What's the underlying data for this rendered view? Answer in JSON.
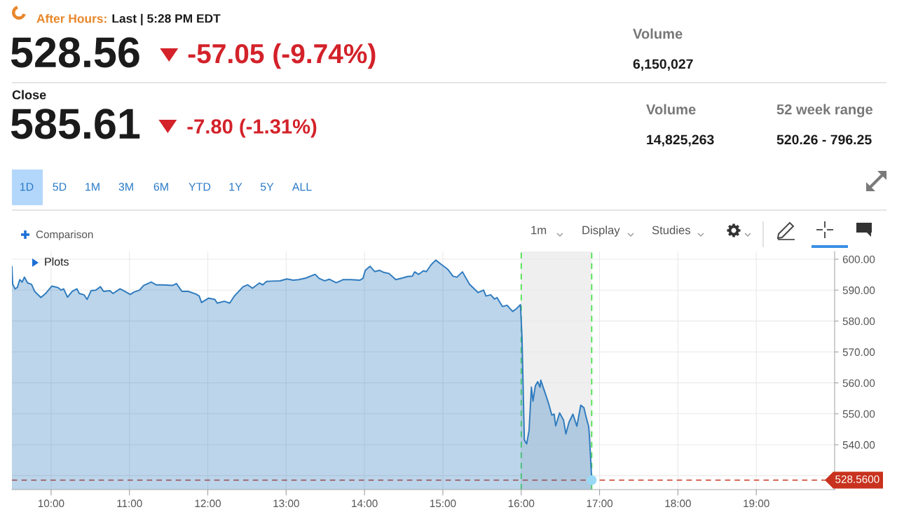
{
  "chart_data": {
    "type": "area",
    "x": [
      9.5,
      9.51,
      9.54,
      9.57,
      9.6,
      9.63,
      9.66,
      9.7,
      9.75,
      9.79,
      9.87,
      9.93,
      10.01,
      10.09,
      10.13,
      10.16,
      10.21,
      10.27,
      10.33,
      10.36,
      10.42,
      10.46,
      10.51,
      10.57,
      10.63,
      10.67,
      10.75,
      10.79,
      10.88,
      10.94,
      11.01,
      11.06,
      11.13,
      11.18,
      11.28,
      11.34,
      11.43,
      11.55,
      11.6,
      11.67,
      11.75,
      11.85,
      11.89,
      11.92,
      12.01,
      12.09,
      12.12,
      12.21,
      12.28,
      12.34,
      12.45,
      12.51,
      12.57,
      12.66,
      12.7,
      12.75,
      12.81,
      12.92,
      13.01,
      13.09,
      13.16,
      13.25,
      13.37,
      13.42,
      13.49,
      13.55,
      13.64,
      13.73,
      13.82,
      13.94,
      13.98,
      14.01,
      14.07,
      14.13,
      14.19,
      14.25,
      14.31,
      14.4,
      14.48,
      14.55,
      14.61,
      14.64,
      14.69,
      14.75,
      14.79,
      14.85,
      14.91,
      14.98,
      15.06,
      15.13,
      15.18,
      15.25,
      15.34,
      15.45,
      15.52,
      15.55,
      15.61,
      15.66,
      15.69,
      15.76,
      15.82,
      15.89,
      15.94,
      15.99,
      16.01,
      16.04,
      16.07,
      16.1,
      16.13,
      16.15,
      16.18,
      16.21,
      16.24,
      16.25,
      16.28,
      16.31,
      16.35,
      16.39,
      16.42,
      16.44,
      16.49,
      16.54,
      16.57,
      16.61,
      16.66,
      16.71,
      16.76,
      16.8,
      16.83,
      16.86,
      16.87,
      16.9
    ],
    "series": [
      {
        "color": "#2f7bbf",
        "values": [
          597.6,
          591.9,
          590.4,
          590.9,
          593.4,
          592.6,
          594.2,
          592.3,
          591.9,
          589.6,
          587.6,
          588.9,
          591.3,
          590.8,
          590.0,
          590.4,
          587.7,
          589.6,
          590.4,
          588.9,
          588.5,
          587.0,
          589.8,
          590.0,
          591.1,
          589.6,
          589.8,
          588.9,
          590.4,
          589.6,
          588.6,
          589.4,
          590.0,
          591.5,
          592.6,
          591.7,
          591.7,
          591.5,
          592.1,
          589.6,
          589.6,
          588.7,
          588.1,
          586.0,
          587.4,
          587.0,
          585.8,
          586.4,
          585.8,
          588.1,
          591.1,
          591.7,
          590.6,
          592.3,
          591.7,
          592.8,
          592.9,
          593.0,
          593.6,
          593.2,
          593.4,
          593.9,
          595.1,
          593.8,
          593.0,
          593.5,
          592.4,
          593.4,
          593.4,
          593.2,
          593.8,
          596.4,
          597.7,
          596.0,
          596.4,
          595.7,
          595.4,
          593.4,
          593.9,
          594.4,
          594.5,
          595.9,
          595.1,
          596.2,
          596.0,
          598.2,
          599.7,
          598.3,
          596.8,
          594.5,
          594.2,
          595.9,
          591.9,
          589.2,
          590.0,
          588.1,
          588.5,
          587.1,
          587.6,
          584.7,
          585.1,
          583.1,
          584.0,
          585.3,
          574.9,
          541.6,
          540.3,
          544.6,
          558.6,
          554.1,
          559.0,
          560.4,
          558.6,
          560.9,
          558.6,
          556.4,
          553.3,
          549.6,
          549.9,
          546.1,
          550.3,
          548.0,
          543.5,
          547.3,
          549.9,
          546.0,
          552.8,
          552.0,
          548.8,
          546.0,
          543.2,
          528.56
        ]
      },
      {
        "type": "scatter",
        "color": "#9ad9f5",
        "marker": "circle",
        "x": [
          16.9
        ],
        "values": [
          528.56
        ]
      }
    ],
    "xlim": [
      9.5,
      20.0
    ],
    "xticks": [
      {
        "value": 10,
        "label": "10:00"
      },
      {
        "value": 11,
        "label": "11:00"
      },
      {
        "value": 12,
        "label": "12:00"
      },
      {
        "value": 13,
        "label": "13:00"
      },
      {
        "value": 14,
        "label": "14:00"
      },
      {
        "value": 15,
        "label": "15:00"
      },
      {
        "value": 16,
        "label": "16:00"
      },
      {
        "value": 17,
        "label": "17:00"
      },
      {
        "value": 18,
        "label": "18:00"
      },
      {
        "value": 19,
        "label": "19:00"
      }
    ],
    "ylim": [
      525.5,
      602.5
    ],
    "yticks": [
      {
        "value": 530,
        "label": null
      },
      {
        "value": 540,
        "label": "540.00"
      },
      {
        "value": 550,
        "label": "550.00"
      },
      {
        "value": 560,
        "label": "560.00"
      },
      {
        "value": 570,
        "label": "570.00"
      },
      {
        "value": 580,
        "label": "580.00"
      },
      {
        "value": 590,
        "label": "590.00"
      },
      {
        "value": 600,
        "label": "600.00"
      }
    ],
    "grid": true,
    "bands": [
      {
        "axis": "x",
        "from": 16,
        "to": 16.9,
        "color": "#efefef"
      }
    ],
    "ref_lines": [
      {
        "axis": "x",
        "value": 16,
        "color": "#3fe03f",
        "line_style": "dashed"
      },
      {
        "axis": "x",
        "value": 16.9,
        "color": "#3fe03f",
        "line_style": "dashed"
      },
      {
        "axis": "y",
        "value": 528.56,
        "label": "528.5600",
        "color": "#c8321e",
        "line_style": "dashed"
      }
    ],
    "annotations": [
      "After Hours:",
      "Last | 5:28 PM EDT",
      "528.56",
      "-57.05 (-9.74%)",
      "Volume",
      "6,150,027",
      "Close",
      "585.61",
      "-7.80 (-1.31%)",
      "Volume",
      "14,825,263",
      "52 week range",
      "520.26 - 796.25",
      "1D",
      "5D",
      "1M",
      "3M",
      "6M",
      "YTD",
      "1Y",
      "5Y",
      "ALL",
      "Comparison",
      "1m",
      "Display",
      "Studies",
      "Plots"
    ]
  }
}
